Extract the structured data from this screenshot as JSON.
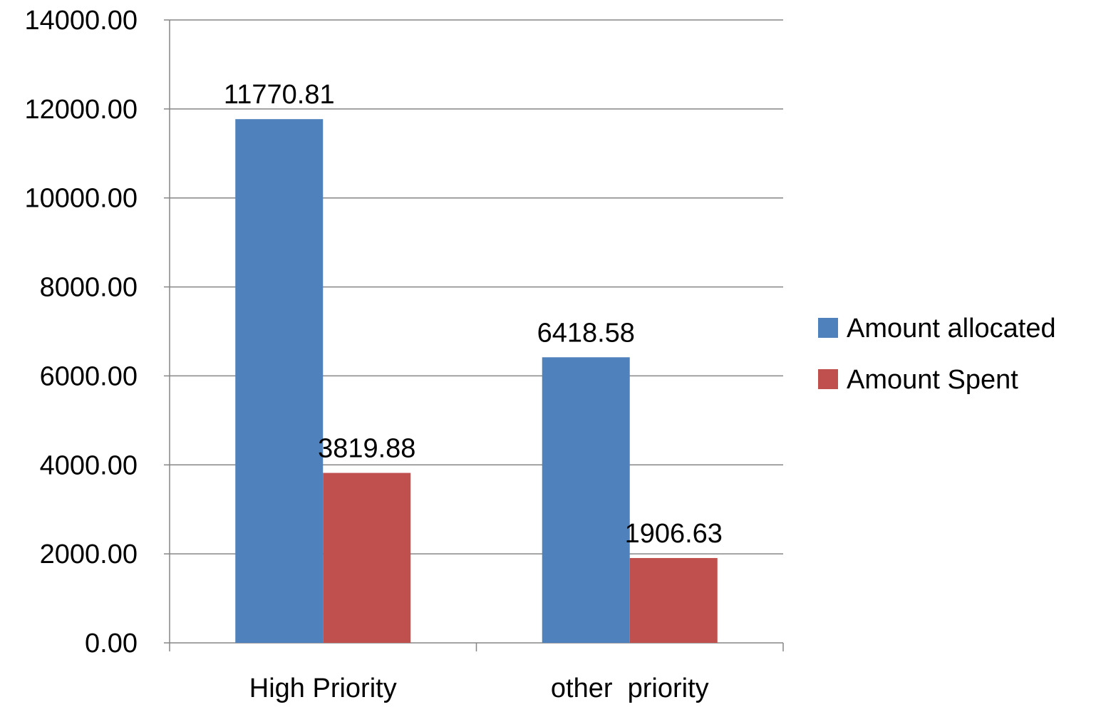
{
  "chart_data": {
    "type": "bar",
    "title": "",
    "xlabel": "",
    "ylabel": "",
    "categories": [
      "High Priority",
      "other  priority"
    ],
    "series": [
      {
        "name": "Amount allocated",
        "color": "#4F81BD",
        "values": [
          11770.81,
          6418.58
        ]
      },
      {
        "name": "Amount Spent",
        "color": "#C0504D",
        "values": [
          3819.88,
          1906.63
        ]
      }
    ],
    "data_labels": [
      [
        "11770.81",
        "6418.58"
      ],
      [
        "3819.88",
        "1906.63"
      ]
    ],
    "ylim": [
      0,
      14000
    ],
    "y_ticks": [
      0,
      2000,
      4000,
      6000,
      8000,
      10000,
      12000,
      14000
    ],
    "y_tick_labels": [
      "0.00",
      "2000.00",
      "4000.00",
      "6000.00",
      "8000.00",
      "10000.00",
      "12000.00",
      "14000.00"
    ],
    "grid": true,
    "legend_position": "right"
  }
}
